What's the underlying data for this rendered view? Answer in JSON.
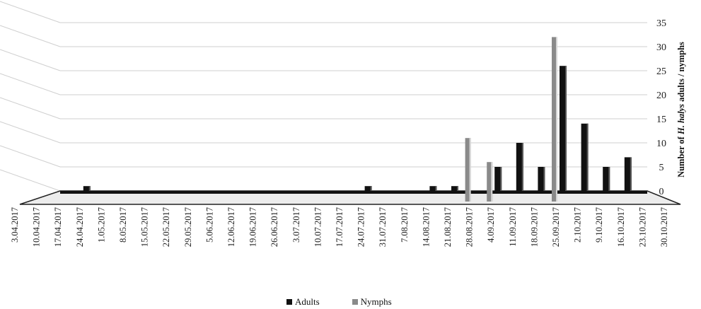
{
  "chart_data": {
    "type": "bar",
    "title": "",
    "xlabel": "",
    "ylabel": "Number of H. halys adults / nymphs",
    "ylabel_parts": [
      "Number of ",
      "H. halys",
      " adults / nymphs"
    ],
    "ylim": [
      0,
      35
    ],
    "yticks": [
      0,
      5,
      10,
      15,
      20,
      25,
      30,
      35
    ],
    "grid": true,
    "legend_position": "bottom-center",
    "categories": [
      "3.04.2017",
      "10.04.2017",
      "17.04.2017",
      "24.04.2017",
      "1.05.2017",
      "8.05.2017",
      "15.05.2017",
      "22.05.2017",
      "29.05.2017",
      "5.06.2017",
      "12.06.2017",
      "19.06.2017",
      "26.06.2017",
      "3.07.2017",
      "10.07.2017",
      "17.07.2017",
      "24.07.2017",
      "31.07.2017",
      "7.08.2017",
      "14.08.2017",
      "21.08.2017",
      "28.08.2017",
      "4.09.2017",
      "11.09.2017",
      "18.09.2017",
      "25.09.2017",
      "2.10.2017",
      "9.10.2017",
      "16.10.2017",
      "23.10.2017",
      "30.10.2017"
    ],
    "series": [
      {
        "name": "Adults",
        "color": "#111111",
        "values": [
          0,
          0,
          0,
          1,
          0,
          0,
          0,
          0,
          0,
          0,
          0,
          0,
          0,
          0,
          0,
          0,
          1,
          0,
          0,
          1,
          1,
          0,
          5,
          10,
          5,
          26,
          14,
          5,
          7,
          0,
          0
        ]
      },
      {
        "name": "Nymphs",
        "color": "#8a8a8a",
        "values": [
          0,
          0,
          0,
          0,
          0,
          0,
          0,
          0,
          0,
          0,
          0,
          0,
          0,
          0,
          0,
          0,
          0,
          0,
          0,
          0,
          0,
          11,
          6,
          0,
          0,
          32,
          0,
          0,
          0,
          0,
          0
        ]
      }
    ]
  }
}
